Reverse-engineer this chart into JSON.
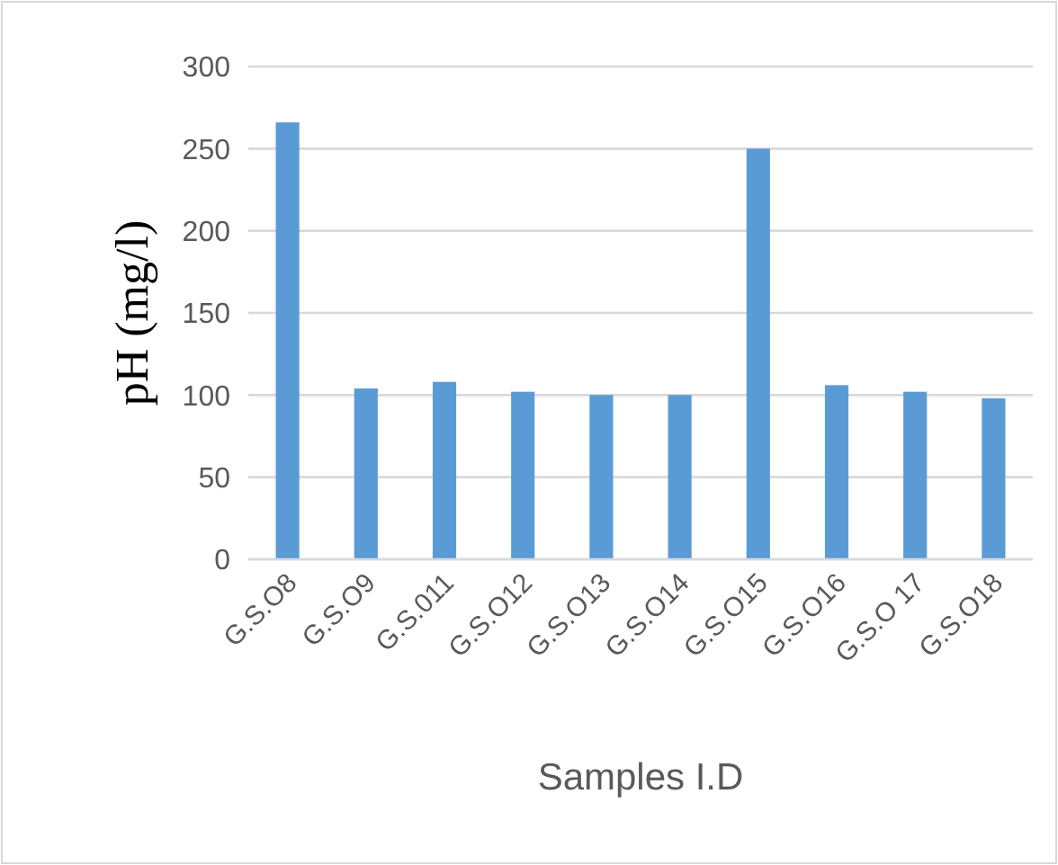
{
  "chart_data": {
    "type": "bar",
    "xlabel": "Samples I.D",
    "ylabel": "pH (mg/l)",
    "categories": [
      "G.S.O8",
      "G.S.O9",
      "G.S.011",
      "G.S.O12",
      "G.S.O13",
      "G.S.O14",
      "G.S.O15",
      "G.S.O16",
      "G.S.O 17",
      "G.S.O18"
    ],
    "values": [
      266,
      104,
      108,
      102,
      100,
      100,
      250,
      106,
      102,
      98
    ],
    "color": "#5b9bd5",
    "ylim": [
      0,
      300
    ],
    "yticks": [
      0,
      50,
      100,
      150,
      200,
      250,
      300
    ],
    "grid": "y"
  }
}
